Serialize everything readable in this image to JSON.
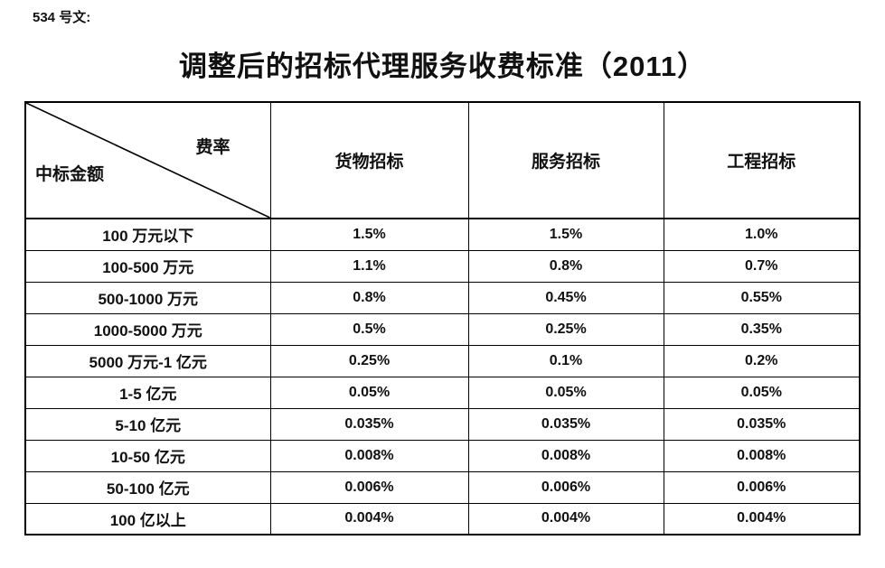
{
  "document": {
    "ref_label": "534 号文:",
    "title": "调整后的招标代理服务收费标准（2011）"
  },
  "table": {
    "corner": {
      "rate_label": "费率",
      "amount_label": "中标金额"
    },
    "columns": [
      "货物招标",
      "服务招标",
      "工程招标"
    ],
    "rows": [
      {
        "label": "100 万元以下",
        "values": [
          "1.5%",
          "1.5%",
          "1.0%"
        ]
      },
      {
        "label": "100-500 万元",
        "values": [
          "1.1%",
          "0.8%",
          "0.7%"
        ]
      },
      {
        "label": "500-1000 万元",
        "values": [
          "0.8%",
          "0.45%",
          "0.55%"
        ]
      },
      {
        "label": "1000-5000 万元",
        "values": [
          "0.5%",
          "0.25%",
          "0.35%"
        ]
      },
      {
        "label": "5000 万元-1 亿元",
        "values": [
          "0.25%",
          "0.1%",
          "0.2%"
        ]
      },
      {
        "label": "1-5 亿元",
        "values": [
          "0.05%",
          "0.05%",
          "0.05%"
        ]
      },
      {
        "label": "5-10 亿元",
        "values": [
          "0.035%",
          "0.035%",
          "0.035%"
        ]
      },
      {
        "label": "10-50 亿元",
        "values": [
          "0.008%",
          "0.008%",
          "0.008%"
        ]
      },
      {
        "label": "50-100 亿元",
        "values": [
          "0.006%",
          "0.006%",
          "0.006%"
        ]
      },
      {
        "label": "100 亿以上",
        "values": [
          "0.004%",
          "0.004%",
          "0.004%"
        ]
      }
    ]
  },
  "colors": {
    "text": "#111111",
    "border": "#000000",
    "background": "#ffffff"
  }
}
